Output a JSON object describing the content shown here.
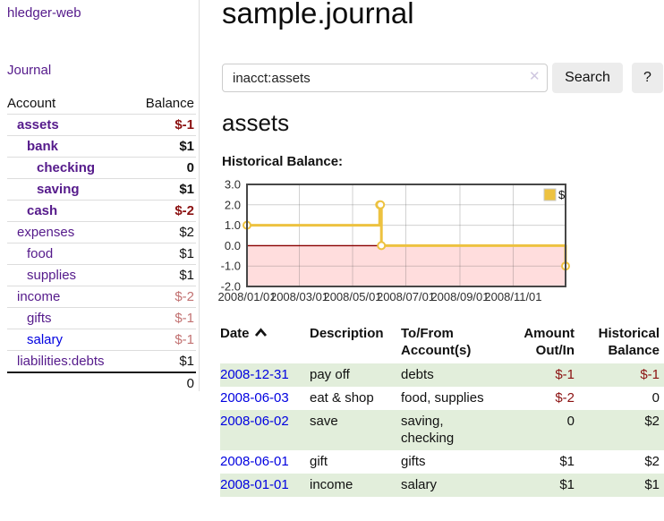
{
  "app": {
    "brand": "hledger-web"
  },
  "sidebar": {
    "journal_link": "Journal",
    "accounts_table": {
      "account_header": "Account",
      "balance_header": "Balance",
      "rows": [
        {
          "name": "assets",
          "balance": "$-1",
          "level": 1,
          "bold": true,
          "balance_style": "negative-strong",
          "link_style": "visited"
        },
        {
          "name": "bank",
          "balance": "$1",
          "level": 2,
          "bold": true,
          "balance_style": "normal",
          "link_style": "visited"
        },
        {
          "name": "checking",
          "balance": "0",
          "level": 3,
          "bold": true,
          "balance_style": "normal",
          "link_style": "visited"
        },
        {
          "name": "saving",
          "balance": "$1",
          "level": 3,
          "bold": true,
          "balance_style": "normal",
          "link_style": "visited"
        },
        {
          "name": "cash",
          "balance": "$-2",
          "level": 2,
          "bold": true,
          "balance_style": "negative-strong",
          "link_style": "visited"
        },
        {
          "name": "expenses",
          "balance": "$2",
          "level": 1,
          "bold": false,
          "balance_style": "normal",
          "link_style": "visited"
        },
        {
          "name": "food",
          "balance": "$1",
          "level": 2,
          "bold": false,
          "balance_style": "normal",
          "link_style": "visited"
        },
        {
          "name": "supplies",
          "balance": "$1",
          "level": 2,
          "bold": false,
          "balance_style": "normal",
          "link_style": "visited"
        },
        {
          "name": "income",
          "balance": "$-2",
          "level": 1,
          "bold": false,
          "balance_style": "negative-soft",
          "link_style": "visited"
        },
        {
          "name": "gifts",
          "balance": "$-1",
          "level": 2,
          "bold": false,
          "balance_style": "negative-soft",
          "link_style": "visited"
        },
        {
          "name": "salary",
          "balance": "$-1",
          "level": 2,
          "bold": false,
          "balance_style": "negative-soft",
          "link_style": "unvisited"
        },
        {
          "name": "liabilities:debts",
          "balance": "$1",
          "level": 1,
          "bold": false,
          "balance_style": "normal",
          "link_style": "visited"
        }
      ],
      "total": "0"
    }
  },
  "main": {
    "title": "sample.journal",
    "search": {
      "value": "inacct:assets",
      "clear_icon": "✕",
      "search_button": "Search",
      "help_button": "?"
    },
    "account_heading": "assets",
    "chart_heading": "Historical Balance:"
  },
  "chart_data": {
    "type": "line",
    "step": true,
    "title": "Historical Balance",
    "series": [
      {
        "name": "$",
        "color": "#edc240",
        "points": [
          [
            "2008-01-01",
            1
          ],
          [
            "2008-06-01",
            2
          ],
          [
            "2008-06-02",
            2
          ],
          [
            "2008-06-03",
            0
          ],
          [
            "2008-12-31",
            -1
          ]
        ]
      }
    ],
    "ylim": [
      -2,
      3
    ],
    "y_ticks": [
      "3.0",
      "2.0",
      "1.0",
      "0.0",
      "-1.0",
      "-2.0"
    ],
    "x_ticks": [
      "2008/01/01",
      "2008/03/01",
      "2008/05/01",
      "2008/07/01",
      "2008/09/01",
      "2008/11/01"
    ],
    "x_range": [
      "2008-01-01",
      "2008-12-31"
    ],
    "grid": true,
    "negative_region_color": "#ffdddd",
    "zero_line_color": "#8b0000",
    "legend": {
      "label": "$",
      "position": "top-right"
    }
  },
  "register_table": {
    "headers": {
      "date": "Date",
      "description": "Description",
      "accounts": "To/From Account(s)",
      "amount": "Amount Out/In",
      "balance": "Historical Balance"
    },
    "sort": {
      "column": "date",
      "direction": "ascending"
    },
    "rows": [
      {
        "date": "2008-12-31",
        "description": "pay off",
        "accounts": "debts",
        "amount": "$-1",
        "amount_negative": true,
        "balance": "$-1",
        "balance_negative": true
      },
      {
        "date": "2008-06-03",
        "description": "eat & shop",
        "accounts": "food, supplies",
        "amount": "$-2",
        "amount_negative": true,
        "balance": "0",
        "balance_negative": false
      },
      {
        "date": "2008-06-02",
        "description": "save",
        "accounts": "saving, checking",
        "amount": "0",
        "amount_negative": false,
        "balance": "$2",
        "balance_negative": false
      },
      {
        "date": "2008-06-01",
        "description": "gift",
        "accounts": "gifts",
        "amount": "$1",
        "amount_negative": false,
        "balance": "$2",
        "balance_negative": false
      },
      {
        "date": "2008-01-01",
        "description": "income",
        "accounts": "salary",
        "amount": "$1",
        "amount_negative": false,
        "balance": "$1",
        "balance_negative": false
      }
    ]
  },
  "colors": {
    "accent_purple": "#551a8b",
    "link_blue": "#0000e0",
    "negative_strong": "#8b1111",
    "negative_soft": "#c27272",
    "row_stripe_green": "#e2eedb",
    "chart_line_gold": "#edc240",
    "chart_negative_region": "#ffdddd",
    "chart_zero_line": "#8b0000",
    "button_gray": "#ececec",
    "sidebar_border": "#dddddd"
  }
}
